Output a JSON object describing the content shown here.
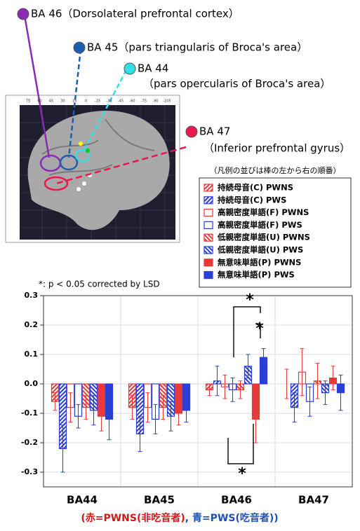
{
  "brain": {
    "labels": [
      {
        "text": "BA 46（Dorsolateral prefrontal cortex）",
        "color": "#8a2bb5"
      },
      {
        "text": "BA 45（pars triangularis of Broca's area）",
        "color": "#1c5fb0"
      },
      {
        "text": "BA 44",
        "color": "#2fe0e8"
      },
      {
        "text": "（pars opercularis of Broca's area）",
        "color": null
      },
      {
        "text": "BA 47",
        "color": "#e8194a"
      },
      {
        "text": "（Inferior prefrontal gyrus）",
        "color": null
      }
    ],
    "axis_labels": [
      "75",
      "60",
      "45",
      "30",
      "15",
      "0",
      "-15",
      "-30",
      "-45",
      "-60",
      "-75",
      "-90",
      "-105"
    ]
  },
  "chart_data": {
    "type": "bar",
    "legend_title": "（凡例の並びは棒の左から右の順番）",
    "annotation": "*: p < 0.05 corrected by LSD",
    "significance": [
      "*",
      "*",
      "*"
    ],
    "categories": [
      "BA44",
      "BA45",
      "BA46",
      "BA47"
    ],
    "series": [
      {
        "name": "持続母音(C) PWNS",
        "color": "#e8393a",
        "style": "hatch-up",
        "values": [
          -0.06,
          -0.08,
          -0.02,
          0.0
        ],
        "errors": [
          0.03,
          0.04,
          0.02,
          0.05
        ]
      },
      {
        "name": "持続母音(C) PWS",
        "color": "#2a3fd6",
        "style": "hatch-up",
        "values": [
          -0.22,
          -0.17,
          0.01,
          -0.08
        ],
        "errors": [
          0.08,
          0.06,
          0.05,
          0.05
        ]
      },
      {
        "name": "高親密度単語(F) PWNS",
        "color": "#e8393a",
        "style": "outline",
        "values": [
          -0.08,
          -0.08,
          -0.01,
          0.04
        ],
        "errors": [
          0.05,
          0.05,
          0.04,
          0.08
        ]
      },
      {
        "name": "高親密度単語(F) PWS",
        "color": "#2a3fd6",
        "style": "outline",
        "values": [
          -0.11,
          -0.12,
          -0.02,
          -0.06
        ],
        "errors": [
          0.04,
          0.05,
          0.04,
          0.05
        ]
      },
      {
        "name": "低親密度単語(U) PWNS",
        "color": "#e8393a",
        "style": "hatch-down",
        "values": [
          -0.08,
          -0.08,
          -0.02,
          0.01
        ],
        "errors": [
          0.04,
          0.04,
          0.03,
          0.06
        ]
      },
      {
        "name": "低親密度単語(U) PWS",
        "color": "#2a3fd6",
        "style": "hatch-down",
        "values": [
          -0.09,
          -0.11,
          0.06,
          -0.03
        ],
        "errors": [
          0.05,
          0.05,
          0.04,
          0.04
        ]
      },
      {
        "name": "無意味単語(P) PWNS",
        "color": "#e8393a",
        "style": "solid",
        "values": [
          -0.11,
          -0.1,
          -0.12,
          0.02
        ],
        "errors": [
          0.05,
          0.04,
          0.08,
          0.04
        ]
      },
      {
        "name": "無意味単語(P) PWS",
        "color": "#2a3fd6",
        "style": "solid",
        "values": [
          -0.12,
          -0.09,
          0.09,
          -0.03
        ],
        "errors": [
          0.07,
          0.04,
          0.03,
          0.06
        ]
      }
    ],
    "ylim": [
      -0.35,
      0.3
    ],
    "yticks": [
      {
        "value": -0.3,
        "label": "-0.3"
      },
      {
        "value": -0.2,
        "label": "-0.2"
      },
      {
        "value": -0.1,
        "label": "-0.1"
      },
      {
        "value": 0,
        "label": "0.0"
      },
      0.1,
      0.2,
      0.3
    ],
    "grid": true,
    "caption": [
      {
        "text": "(",
        "color": "#d01818"
      },
      {
        "text": "赤=PWNS(非吃音者)",
        "color": "#d01818"
      },
      {
        "text": ", ",
        "color": "#1c4fb8"
      },
      {
        "text": "青=PWS(吃音者)",
        "color": "#1c4fb8"
      },
      {
        "text": ")",
        "color": "#1c4fb8"
      }
    ]
  }
}
